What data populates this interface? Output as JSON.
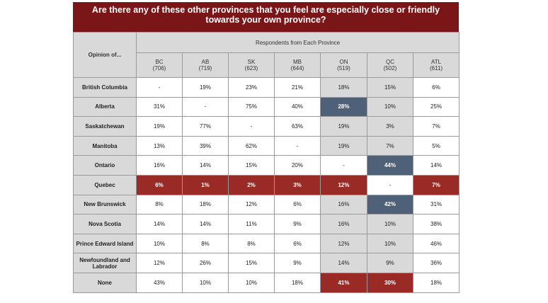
{
  "title_line1": "Are there any of these other provinces that you feel are especially close or friendly",
  "title_line2": "towards your own province?",
  "chart_data": {
    "type": "table",
    "corner_label": "Opinion of...",
    "group_label": "Respondents from Each Province",
    "columns": [
      {
        "code": "BC",
        "n": "(706)"
      },
      {
        "code": "AB",
        "n": "(719)"
      },
      {
        "code": "SK",
        "n": "(623)"
      },
      {
        "code": "MB",
        "n": "(644)"
      },
      {
        "code": "ON",
        "n": "(519)"
      },
      {
        "code": "QC",
        "n": "(502)"
      },
      {
        "code": "ATL",
        "n": "(611)"
      }
    ],
    "rows": [
      {
        "label": "British Columbia",
        "values": [
          "-",
          "19%",
          "23%",
          "21%",
          "18%",
          "15%",
          "6%"
        ],
        "styles": [
          "",
          "",
          "",
          "",
          "shade",
          "shade",
          ""
        ]
      },
      {
        "label": "Alberta",
        "values": [
          "31%",
          "-",
          "75%",
          "40%",
          "28%",
          "10%",
          "25%"
        ],
        "styles": [
          "",
          "",
          "",
          "",
          "blue",
          "shade",
          ""
        ]
      },
      {
        "label": "Saskatchewan",
        "values": [
          "19%",
          "77%",
          "-",
          "63%",
          "19%",
          "3%",
          "7%"
        ],
        "styles": [
          "",
          "",
          "",
          "",
          "shade",
          "shade",
          ""
        ]
      },
      {
        "label": "Manitoba",
        "values": [
          "13%",
          "39%",
          "62%",
          "-",
          "19%",
          "7%",
          "5%"
        ],
        "styles": [
          "",
          "",
          "",
          "",
          "shade",
          "shade",
          ""
        ]
      },
      {
        "label": "Ontario",
        "values": [
          "16%",
          "14%",
          "15%",
          "20%",
          "-",
          "44%",
          "14%"
        ],
        "styles": [
          "",
          "",
          "",
          "",
          "",
          "blue",
          ""
        ]
      },
      {
        "label": "Quebec",
        "values": [
          "6%",
          "1%",
          "2%",
          "3%",
          "12%",
          "-",
          "7%"
        ],
        "styles": [
          "red",
          "red",
          "red",
          "red",
          "red",
          "",
          "red"
        ]
      },
      {
        "label": "New Brunswick",
        "values": [
          "8%",
          "18%",
          "12%",
          "6%",
          "16%",
          "42%",
          "31%"
        ],
        "styles": [
          "",
          "",
          "",
          "",
          "shade",
          "blue",
          ""
        ]
      },
      {
        "label": "Nova Scotia",
        "values": [
          "14%",
          "14%",
          "11%",
          "9%",
          "16%",
          "10%",
          "38%"
        ],
        "styles": [
          "",
          "",
          "",
          "",
          "shade",
          "shade",
          ""
        ]
      },
      {
        "label": "Prince Edward Island",
        "values": [
          "10%",
          "8%",
          "8%",
          "6%",
          "12%",
          "10%",
          "46%"
        ],
        "styles": [
          "",
          "",
          "",
          "",
          "shade",
          "shade",
          ""
        ]
      },
      {
        "label": "Newfoundland and Labrador",
        "values": [
          "12%",
          "26%",
          "15%",
          "9%",
          "14%",
          "9%",
          "36%"
        ],
        "styles": [
          "",
          "",
          "",
          "",
          "shade",
          "shade",
          ""
        ]
      },
      {
        "label": "None",
        "values": [
          "43%",
          "10%",
          "10%",
          "18%",
          "41%",
          "30%",
          "18%"
        ],
        "styles": [
          "",
          "",
          "",
          "",
          "red",
          "red",
          ""
        ]
      }
    ],
    "colors": {
      "title_bg": "#7b1618",
      "highlight_red": "#9a2a26",
      "highlight_blue": "#4f6179",
      "shade": "#d9d9d9"
    }
  }
}
